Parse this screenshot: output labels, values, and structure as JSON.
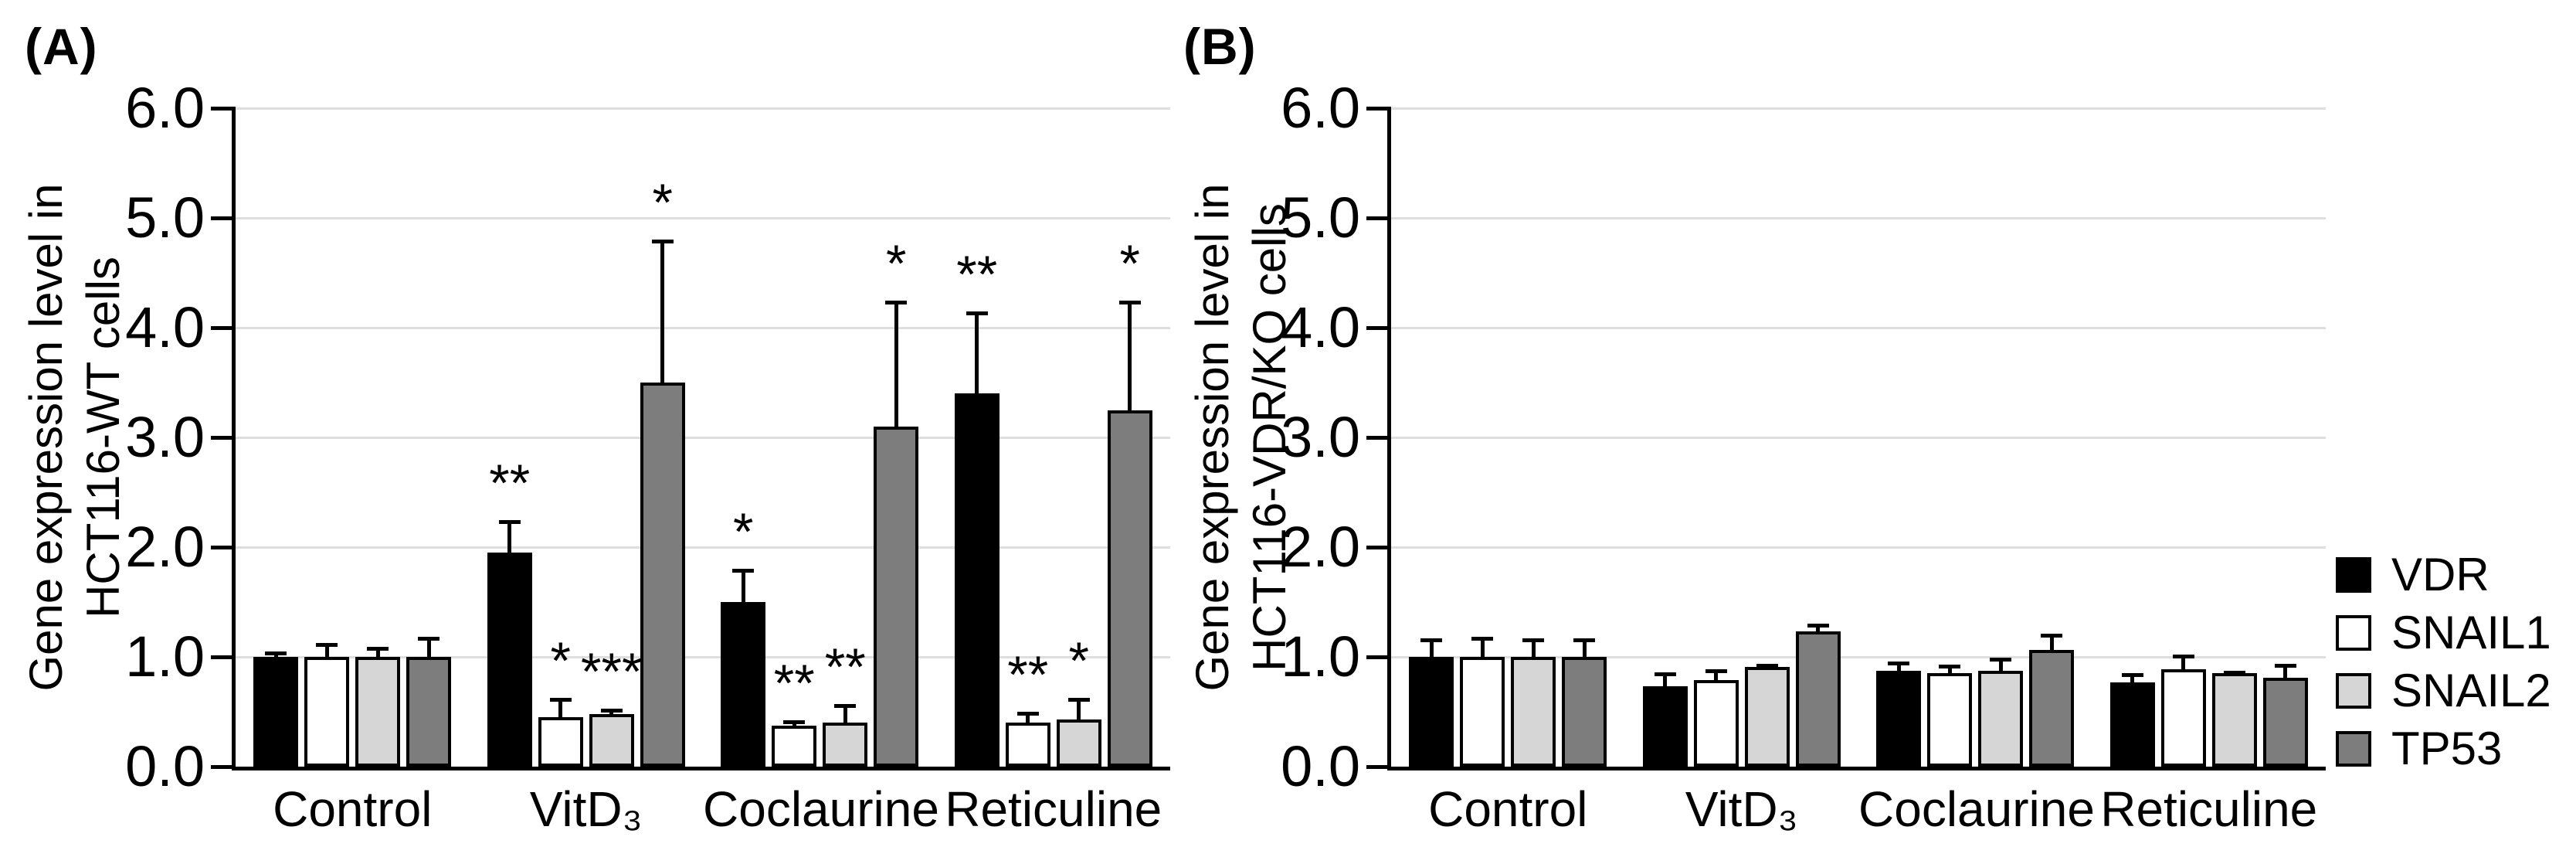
{
  "figure": {
    "panels": [
      {
        "id": "A",
        "letter": "(A)",
        "y_axis_title_line1": "Gene expression level in",
        "y_axis_title_line2": "HCT116-WT cells"
      },
      {
        "id": "B",
        "letter": "(B)",
        "y_axis_title_line1": "Gene expression level in",
        "y_axis_title_line2": "HCT116-VDR/KO cells"
      }
    ],
    "legend": {
      "entries": [
        {
          "label": "VDR",
          "color": "#000000"
        },
        {
          "label": "SNAIL1",
          "color": "#ffffff"
        },
        {
          "label": "SNAIL2",
          "color": "#d6d6d6"
        },
        {
          "label": "TP53",
          "color": "#7d7d7d"
        }
      ]
    },
    "colors": {
      "grid": "#dedede",
      "axis": "#000000",
      "bar_border": "#000000"
    }
  },
  "chart_data": [
    {
      "type": "bar",
      "panel": "A",
      "title": "",
      "xlabel": "",
      "ylabel": "Gene expression level in HCT116-WT cells",
      "ylim": [
        0,
        6
      ],
      "y_ticks": [
        "0.0",
        "1.0",
        "2.0",
        "3.0",
        "4.0",
        "5.0",
        "6.0"
      ],
      "grid": true,
      "legend_position": "right-of-figure",
      "categories": [
        "Control",
        "VitD₃",
        "Coclaurine",
        "Reticuline"
      ],
      "series": [
        {
          "name": "VDR",
          "color": "#000000",
          "values": [
            1.0,
            1.95,
            1.5,
            3.4
          ],
          "errors_plus": [
            0.05,
            0.3,
            0.3,
            0.75
          ],
          "significance": [
            "",
            "**",
            "*",
            "**"
          ]
        },
        {
          "name": "SNAIL1",
          "color": "#ffffff",
          "values": [
            1.0,
            0.45,
            0.37,
            0.4
          ],
          "errors_plus": [
            0.13,
            0.18,
            0.05,
            0.1
          ],
          "significance": [
            "",
            "*",
            "**",
            "**"
          ]
        },
        {
          "name": "SNAIL2",
          "color": "#d6d6d6",
          "values": [
            1.0,
            0.48,
            0.4,
            0.43
          ],
          "errors_plus": [
            0.09,
            0.05,
            0.17,
            0.2
          ],
          "significance": [
            "",
            "***",
            "**",
            "*"
          ]
        },
        {
          "name": "TP53",
          "color": "#7d7d7d",
          "values": [
            1.0,
            3.5,
            3.1,
            3.25
          ],
          "errors_plus": [
            0.18,
            1.3,
            1.15,
            1.0
          ],
          "significance": [
            "",
            "*",
            "*",
            "*"
          ]
        }
      ]
    },
    {
      "type": "bar",
      "panel": "B",
      "title": "",
      "xlabel": "",
      "ylabel": "Gene expression level in HCT116-VDR/KO cells",
      "ylim": [
        0,
        6
      ],
      "y_ticks": [
        "0.0",
        "1.0",
        "2.0",
        "3.0",
        "4.0",
        "5.0",
        "6.0"
      ],
      "grid": true,
      "legend_position": "right-of-figure",
      "categories": [
        "Control",
        "VitD₃",
        "Coclaurine",
        "Reticuline"
      ],
      "series": [
        {
          "name": "VDR",
          "color": "#000000",
          "values": [
            1.0,
            0.73,
            0.87,
            0.77
          ],
          "errors_plus": [
            0.17,
            0.13,
            0.09,
            0.08
          ],
          "significance": [
            "",
            "",
            "",
            ""
          ]
        },
        {
          "name": "SNAIL1",
          "color": "#ffffff",
          "values": [
            1.0,
            0.79,
            0.85,
            0.89
          ],
          "errors_plus": [
            0.18,
            0.1,
            0.08,
            0.13
          ],
          "significance": [
            "",
            "",
            "",
            ""
          ]
        },
        {
          "name": "SNAIL2",
          "color": "#d6d6d6",
          "values": [
            1.0,
            0.91,
            0.87,
            0.85
          ],
          "errors_plus": [
            0.17,
            0.03,
            0.12,
            0.02
          ],
          "significance": [
            "",
            "",
            "",
            ""
          ]
        },
        {
          "name": "TP53",
          "color": "#7d7d7d",
          "values": [
            1.0,
            1.23,
            1.06,
            0.81
          ],
          "errors_plus": [
            0.17,
            0.07,
            0.15,
            0.13
          ],
          "significance": [
            "",
            "",
            "",
            ""
          ]
        }
      ]
    }
  ]
}
